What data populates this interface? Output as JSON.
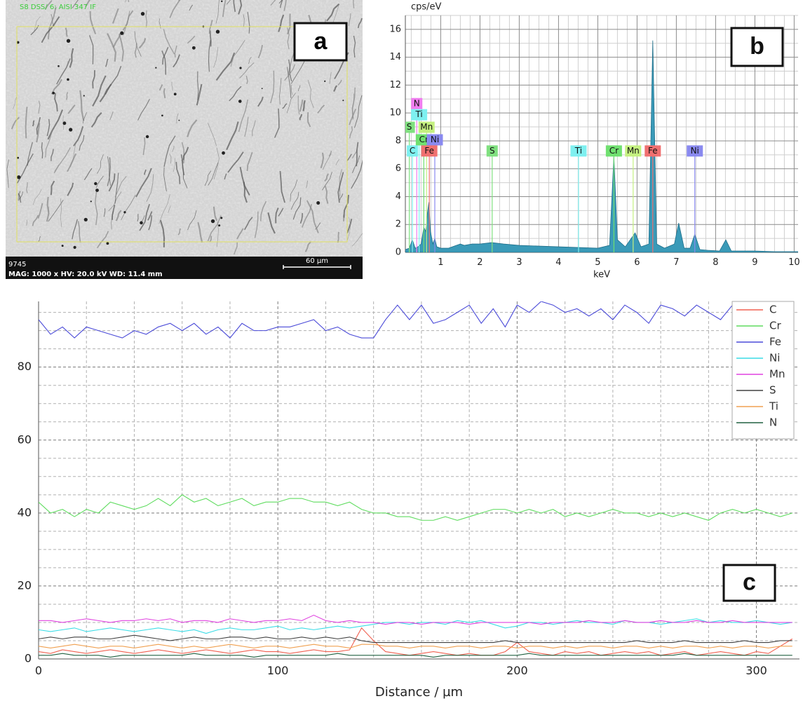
{
  "image": {
    "caption_top": "S8 DSS/ 6: AISI 347 IF",
    "id": "9745",
    "info": "MAG: 1000 x HV: 20.0 kV WD: 11.4 mm",
    "scale_bar": "60 µm",
    "panel_label": "a"
  },
  "chart_data": [
    {
      "type": "area",
      "panel_label": "b",
      "x_label": "keV",
      "y_label": "cps/eV",
      "color": "#3a9ab8",
      "x": [
        0.1,
        0.2,
        0.28,
        0.35,
        0.42,
        0.5,
        0.57,
        0.62,
        0.66,
        0.7,
        0.74,
        0.8,
        0.85,
        0.9,
        1.0,
        1.2,
        1.4,
        1.5,
        1.6,
        1.8,
        2.0,
        2.3,
        2.6,
        3.0,
        3.5,
        4.0,
        4.5,
        5.0,
        5.3,
        5.41,
        5.5,
        5.7,
        5.95,
        6.1,
        6.3,
        6.4,
        6.5,
        6.7,
        6.95,
        7.06,
        7.2,
        7.35,
        7.47,
        7.6,
        7.8,
        8.1,
        8.26,
        8.4,
        9.0,
        9.5,
        10.0,
        10.1
      ],
      "values": [
        0.2,
        0.3,
        0.9,
        0.3,
        0.4,
        0.6,
        1.8,
        1.5,
        2.8,
        3.6,
        1.5,
        0.6,
        1.0,
        0.4,
        0.3,
        0.3,
        0.5,
        0.6,
        0.5,
        0.6,
        0.6,
        0.7,
        0.6,
        0.5,
        0.45,
        0.4,
        0.35,
        0.3,
        0.5,
        6.9,
        0.9,
        0.4,
        1.4,
        0.4,
        0.6,
        15.2,
        0.6,
        0.3,
        0.6,
        2.1,
        0.3,
        0.3,
        1.3,
        0.2,
        0.15,
        0.1,
        0.9,
        0.1,
        0.1,
        0.05,
        0.05,
        0.05
      ],
      "xlim": [
        0.1,
        10.1
      ],
      "ylim": [
        0,
        17
      ],
      "xticks": [
        1,
        2,
        3,
        4,
        5,
        6,
        7,
        8,
        9,
        10
      ],
      "yticks": [
        0,
        2,
        4,
        6,
        8,
        10,
        12,
        14,
        16
      ],
      "minor_xticks": [
        0.25,
        0.5,
        0.75,
        1.25,
        1.5,
        1.75,
        2.25,
        2.5,
        2.75,
        3.25,
        3.5,
        3.75,
        4.25,
        4.5,
        4.75,
        5.25,
        5.5,
        5.75,
        6.25,
        6.5,
        6.75,
        7.25,
        7.5,
        7.75,
        8.25,
        8.5,
        8.75,
        9.25,
        9.5,
        9.75
      ],
      "minor_yticks": [
        1,
        3,
        5,
        7,
        9,
        11,
        13,
        15,
        17
      ],
      "grid": true,
      "annotations": [
        {
          "label": "N",
          "x": 0.39,
          "y": 10.7,
          "color": "#f07ef0"
        },
        {
          "label": "Ti",
          "x": 0.45,
          "y": 9.9,
          "color": "#7ef0f0"
        },
        {
          "label": "S",
          "x": 0.2,
          "y": 9.0,
          "color": "#80e080"
        },
        {
          "label": "Mn",
          "x": 0.64,
          "y": 9.0,
          "color": "#c4f080"
        },
        {
          "label": "Cr",
          "x": 0.57,
          "y": 8.1,
          "color": "#70e070"
        },
        {
          "label": "Ni",
          "x": 0.85,
          "y": 8.1,
          "color": "#8a8af0"
        },
        {
          "label": "C",
          "x": 0.28,
          "y": 7.3,
          "color": "#7ef0f0"
        },
        {
          "label": "Fe",
          "x": 0.71,
          "y": 7.3,
          "color": "#f07070"
        },
        {
          "label": "S",
          "x": 2.31,
          "y": 7.3,
          "color": "#80e080"
        },
        {
          "label": "Ti",
          "x": 4.51,
          "y": 7.3,
          "color": "#7ef0f0"
        },
        {
          "label": "Cr",
          "x": 5.41,
          "y": 7.3,
          "color": "#70e070"
        },
        {
          "label": "Mn",
          "x": 5.9,
          "y": 7.3,
          "color": "#c4f080"
        },
        {
          "label": "Fe",
          "x": 6.4,
          "y": 7.3,
          "color": "#f07070"
        },
        {
          "label": "Ni",
          "x": 7.47,
          "y": 7.3,
          "color": "#8a8af0"
        }
      ]
    },
    {
      "type": "line",
      "panel_label": "c",
      "x_label": "Distance / µm",
      "x": [
        0,
        5,
        10,
        15,
        20,
        25,
        30,
        35,
        40,
        45,
        50,
        55,
        60,
        65,
        70,
        75,
        80,
        85,
        90,
        95,
        100,
        105,
        110,
        115,
        120,
        125,
        130,
        135,
        140,
        145,
        150,
        155,
        160,
        165,
        170,
        175,
        180,
        185,
        190,
        195,
        200,
        205,
        210,
        215,
        220,
        225,
        230,
        235,
        240,
        245,
        250,
        255,
        260,
        265,
        270,
        275,
        280,
        285,
        290,
        295,
        300,
        305,
        310,
        315
      ],
      "xlim": [
        0,
        318
      ],
      "ylim": [
        0,
        98
      ],
      "xticks": [
        0,
        100,
        200,
        300
      ],
      "yticks": [
        0,
        20,
        40,
        60,
        80
      ],
      "minor_xticks": [
        20,
        40,
        60,
        80,
        120,
        140,
        160,
        180,
        220,
        240,
        260,
        280
      ],
      "minor_yticks": [
        5,
        10,
        15,
        25,
        30,
        35,
        45,
        50,
        55,
        65,
        70,
        75,
        85,
        90,
        95
      ],
      "grid": true,
      "legend": "upper right",
      "series": [
        {
          "name": "C",
          "color": "#f06050",
          "values": [
            2,
            1.5,
            2.5,
            2,
            1.5,
            2,
            2.5,
            2,
            1.5,
            2,
            2.5,
            2,
            1.5,
            2,
            2.5,
            2,
            1.5,
            2,
            2.5,
            2,
            2,
            1.5,
            2,
            2.5,
            2,
            2,
            2.5,
            8.5,
            5,
            2,
            1.5,
            1,
            1.5,
            2,
            1.5,
            1,
            1.5,
            1,
            1,
            2,
            4.5,
            2,
            1.5,
            1,
            2,
            1.5,
            2,
            1,
            1.5,
            2,
            1.5,
            2,
            1,
            1.5,
            2,
            1,
            1.5,
            2,
            1.5,
            1,
            2,
            1.5,
            3.5,
            5.5
          ]
        },
        {
          "name": "Cr",
          "color": "#5fdc5f",
          "values": [
            43,
            40,
            41,
            39,
            41,
            40,
            43,
            42,
            41,
            42,
            44,
            42,
            45,
            43,
            44,
            42,
            43,
            44,
            42,
            43,
            43,
            44,
            44,
            43,
            43,
            42,
            43,
            41,
            40,
            40,
            39,
            39,
            38,
            38,
            39,
            38,
            39,
            40,
            41,
            41,
            40,
            41,
            40,
            41,
            39,
            40,
            39,
            40,
            41,
            40,
            40,
            39,
            40,
            39,
            40,
            39,
            38,
            40,
            41,
            40,
            41,
            40,
            39,
            40
          ]
        },
        {
          "name": "Fe",
          "color": "#4a4ad8",
          "values": [
            93,
            89,
            91,
            88,
            91,
            90,
            89,
            88,
            90,
            89,
            91,
            92,
            90,
            92,
            89,
            91,
            88,
            92,
            90,
            90,
            91,
            91,
            92,
            93,
            90,
            91,
            89,
            88,
            88,
            93,
            97,
            93,
            97,
            92,
            93,
            95,
            97,
            92,
            96,
            91,
            97,
            95,
            98,
            97,
            95,
            96,
            94,
            96,
            93,
            97,
            95,
            92,
            97,
            96,
            94,
            97,
            95,
            93,
            97,
            95,
            98,
            97,
            96,
            95
          ]
        },
        {
          "name": "Ni",
          "color": "#3adce6",
          "values": [
            8,
            7.5,
            8,
            8.5,
            7.5,
            8,
            8.5,
            8,
            7.5,
            8,
            8.5,
            8,
            7.5,
            8,
            7,
            8,
            8.5,
            8,
            8,
            8.5,
            9,
            8,
            8.5,
            8,
            8.5,
            9,
            8.5,
            9,
            9.5,
            10,
            10,
            9.5,
            10,
            10,
            9.5,
            10.5,
            10,
            10.5,
            9.5,
            8.5,
            9,
            10,
            10,
            9.5,
            10,
            10.5,
            10,
            10,
            9.5,
            10.5,
            10,
            10,
            9.5,
            10,
            10.5,
            11,
            10,
            10.5,
            10,
            10,
            10.5,
            10,
            9.5,
            10
          ]
        },
        {
          "name": "Mn",
          "color": "#e040e0",
          "values": [
            10.5,
            10.5,
            10,
            10.5,
            11,
            10.5,
            10,
            10.5,
            10.5,
            11,
            10.5,
            11,
            10,
            10.5,
            10.5,
            10,
            11,
            10.5,
            10,
            10.5,
            10.5,
            11,
            10.5,
            12,
            10.5,
            10,
            10.5,
            10,
            10,
            9.5,
            10,
            10,
            9.5,
            10,
            10,
            10,
            9.5,
            10,
            10,
            10,
            10,
            10,
            9.5,
            10,
            10,
            10,
            10.5,
            10,
            10,
            10.5,
            10,
            10,
            10.5,
            10,
            10,
            10.5,
            10,
            10,
            10.5,
            10,
            10,
            10,
            10,
            10
          ]
        },
        {
          "name": "S",
          "color": "#404040",
          "values": [
            5.5,
            6,
            5.5,
            6,
            6,
            5.5,
            5.5,
            6,
            6.5,
            6,
            5.5,
            5,
            5.5,
            6,
            5.5,
            5.5,
            6,
            6,
            5.5,
            6,
            5.5,
            5.5,
            6,
            5.5,
            6,
            5.5,
            6,
            5,
            4.5,
            4.5,
            4.5,
            4.5,
            4.5,
            4.5,
            4.5,
            4.5,
            4.5,
            4.5,
            4.5,
            5,
            4.5,
            4.5,
            4.5,
            4.5,
            4.5,
            4.5,
            4.5,
            4.5,
            4.5,
            4.5,
            5,
            4.5,
            4.5,
            4.5,
            5,
            4.5,
            4.5,
            4.5,
            4.5,
            5,
            4.5,
            4.5,
            5,
            5
          ]
        },
        {
          "name": "Ti",
          "color": "#f0a050",
          "values": [
            3.5,
            3,
            3.5,
            4,
            3.5,
            3,
            3.5,
            3.5,
            3,
            3.5,
            4,
            3.5,
            3,
            3.5,
            3,
            3.5,
            4,
            3.5,
            3,
            3.5,
            3.5,
            3,
            3.5,
            4,
            3.5,
            3.5,
            3,
            4,
            4,
            3.5,
            3.5,
            3,
            3.5,
            3.5,
            3,
            3.5,
            3.5,
            3,
            3.5,
            3.5,
            3,
            3.5,
            3.5,
            3,
            3.5,
            3,
            3.5,
            3.5,
            3,
            3.5,
            3.5,
            3,
            3.5,
            3,
            3.5,
            3.5,
            3,
            3.5,
            3,
            3.5,
            3.5,
            3,
            3.5,
            3.5
          ]
        },
        {
          "name": "N",
          "color": "#206040",
          "values": [
            1,
            1,
            1.5,
            1,
            1,
            1,
            0.5,
            1,
            1,
            1,
            1,
            1,
            1,
            1.5,
            1,
            1,
            1,
            1,
            0.5,
            1,
            1,
            1,
            1,
            1,
            1,
            1.5,
            1,
            1,
            1,
            1,
            1,
            1,
            1,
            0.5,
            1,
            1,
            1,
            1,
            1,
            1,
            1,
            1.5,
            1,
            1,
            1,
            1,
            1,
            1,
            1,
            1,
            1,
            1,
            1,
            1,
            1.5,
            1,
            1,
            1,
            1,
            1,
            1,
            1,
            1,
            1
          ]
        }
      ]
    }
  ]
}
